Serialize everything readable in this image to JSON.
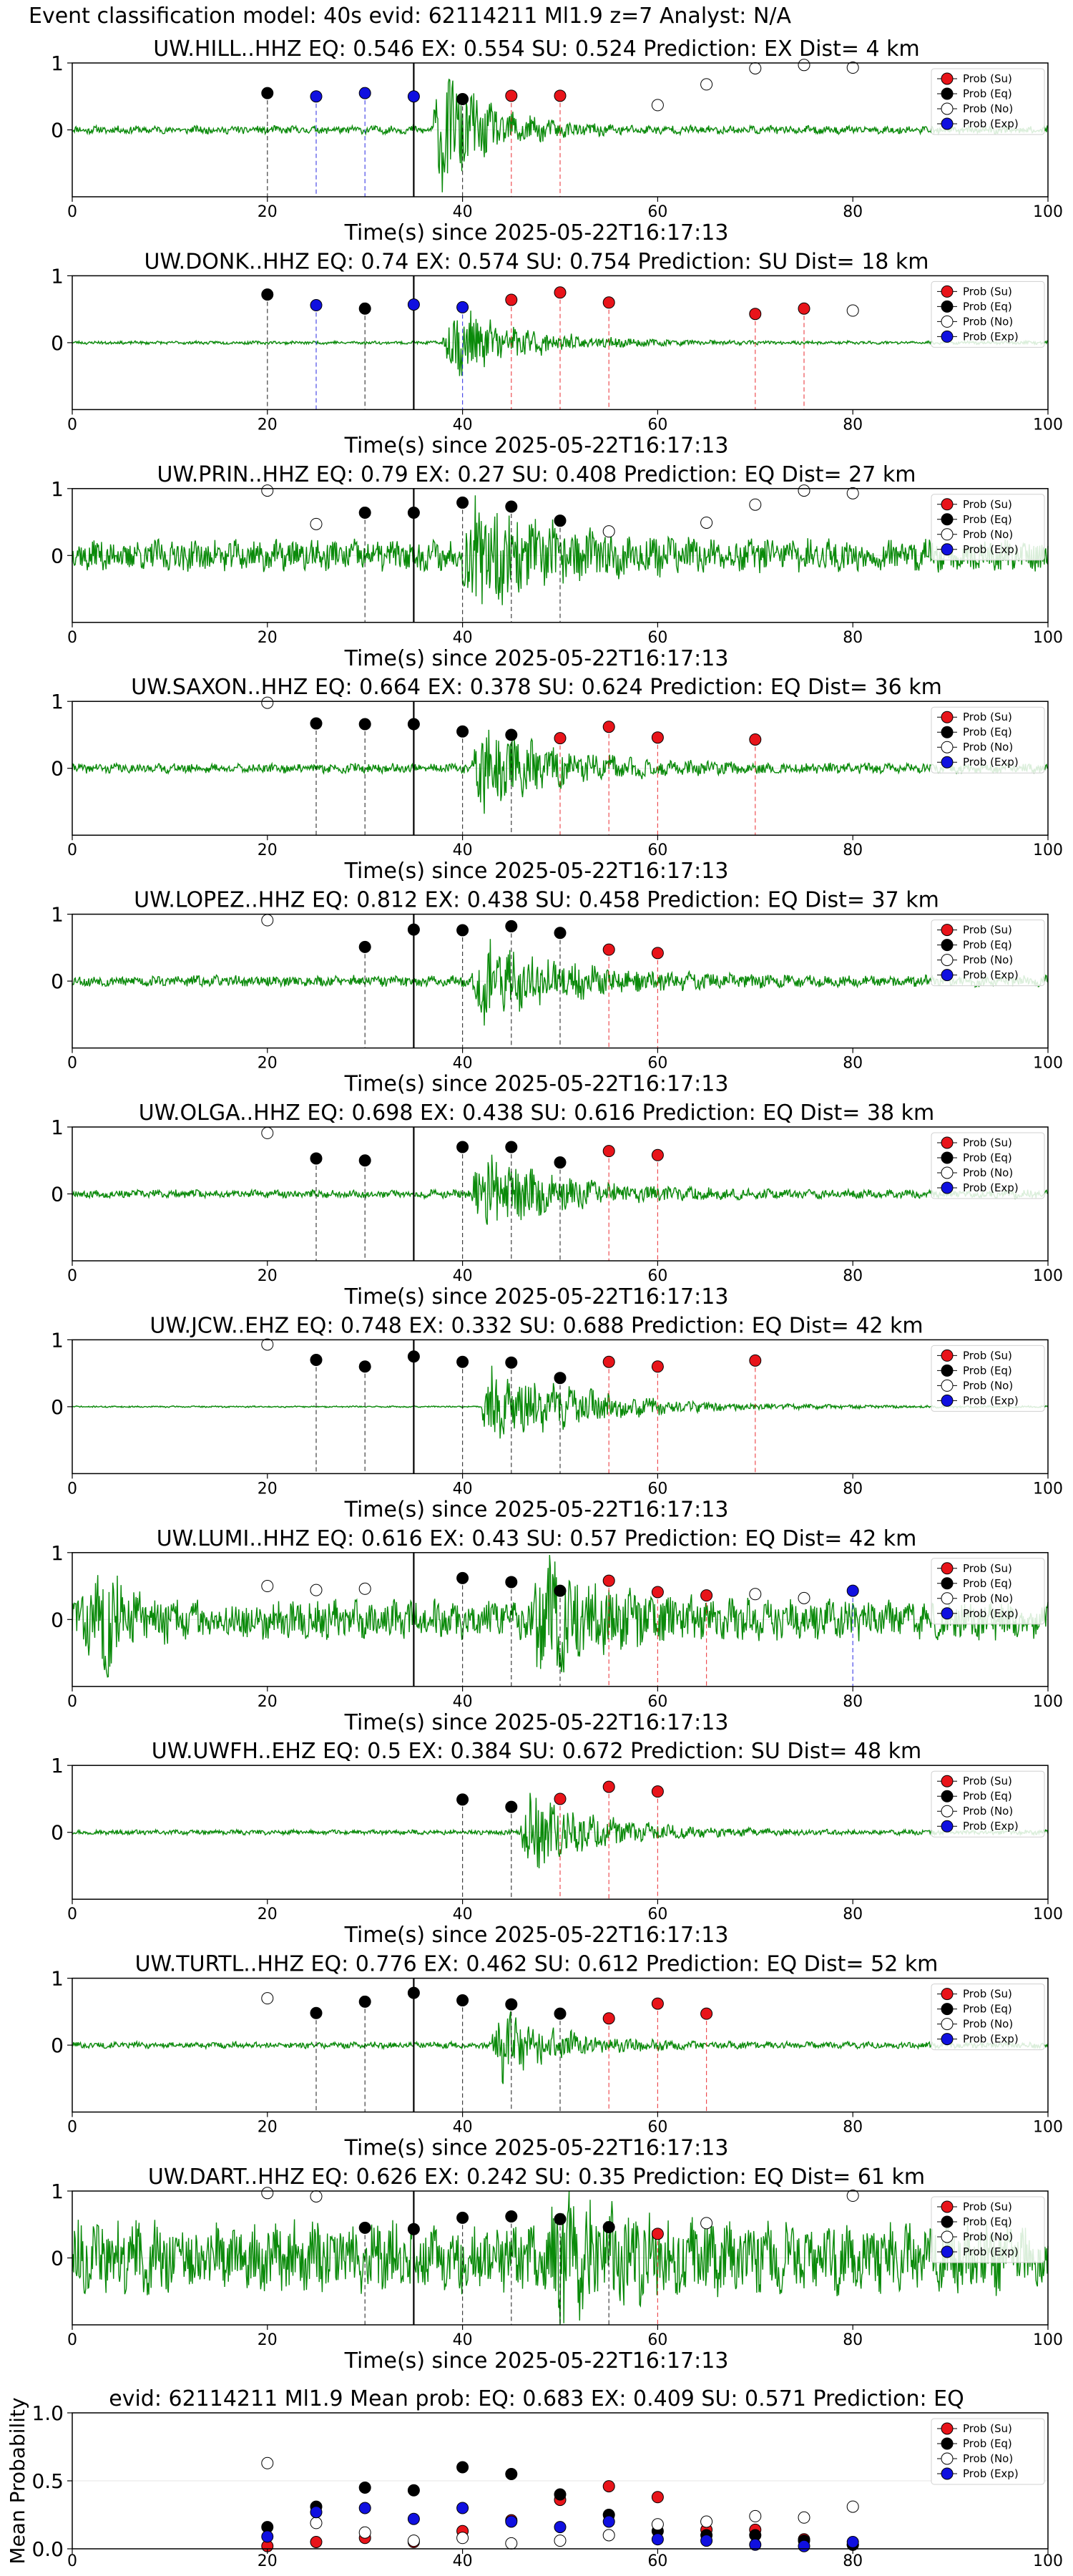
{
  "figure": {
    "title": "Event classification model: 40s evid: 62114211 Ml1.9 z=7 Analyst: N/A"
  },
  "colors": {
    "su": "#e8141a",
    "eq": "#000000",
    "no": "#ffffff",
    "exp": "#1010e0",
    "wave": "#0a8a0a",
    "axis": "#000000",
    "grid": "#e6e6e6"
  },
  "legend_labels": [
    "Prob (Su)",
    "Prob (Eq)",
    "Prob (No)",
    "Prob (Exp)"
  ],
  "chart_data": [
    {
      "type": "scatter",
      "station_title": "UW.HILL..HHZ   EQ: 0.546  EX: 0.554  SU: 0.524   Prediction: EX    Dist= 4 km",
      "xlabel": "Time(s) since 2025-05-22T16:17:13",
      "xlim": [
        0,
        100
      ],
      "ylim": [
        -1,
        1
      ],
      "xticks": [
        0,
        20,
        40,
        60,
        80,
        100
      ],
      "yticks": [
        1,
        0
      ],
      "pick_line": 35,
      "waveform": {
        "base_amp": 0.05,
        "onset": 37,
        "peak": 0.9,
        "decay": 5,
        "seed": 11
      },
      "points": [
        {
          "x": 20,
          "y": 0.55,
          "cls": "eq"
        },
        {
          "x": 25,
          "y": 0.5,
          "cls": "exp"
        },
        {
          "x": 30,
          "y": 0.55,
          "cls": "exp"
        },
        {
          "x": 35,
          "y": 0.5,
          "cls": "exp"
        },
        {
          "x": 40,
          "y": 0.46,
          "cls": "eq"
        },
        {
          "x": 45,
          "y": 0.51,
          "cls": "su"
        },
        {
          "x": 50,
          "y": 0.51,
          "cls": "su"
        },
        {
          "x": 60,
          "y": 0.37,
          "cls": "no"
        },
        {
          "x": 65,
          "y": 0.68,
          "cls": "no"
        },
        {
          "x": 70,
          "y": 0.92,
          "cls": "no"
        },
        {
          "x": 75,
          "y": 0.97,
          "cls": "no"
        },
        {
          "x": 80,
          "y": 0.93,
          "cls": "no"
        }
      ]
    },
    {
      "type": "scatter",
      "station_title": "UW.DONK..HHZ   EQ: 0.74  EX: 0.574  SU: 0.754   Prediction: SU    Dist= 18 km",
      "xlabel": "Time(s) since 2025-05-22T16:17:13",
      "xlim": [
        0,
        100
      ],
      "ylim": [
        -1,
        1
      ],
      "xticks": [
        0,
        20,
        40,
        60,
        80,
        100
      ],
      "yticks": [
        1,
        0
      ],
      "pick_line": 35,
      "waveform": {
        "base_amp": 0.02,
        "onset": 38,
        "peak": 0.55,
        "decay": 7,
        "seed": 23
      },
      "points": [
        {
          "x": 20,
          "y": 0.72,
          "cls": "eq"
        },
        {
          "x": 25,
          "y": 0.56,
          "cls": "exp"
        },
        {
          "x": 30,
          "y": 0.51,
          "cls": "eq"
        },
        {
          "x": 35,
          "y": 0.57,
          "cls": "exp"
        },
        {
          "x": 40,
          "y": 0.53,
          "cls": "exp"
        },
        {
          "x": 45,
          "y": 0.64,
          "cls": "su"
        },
        {
          "x": 50,
          "y": 0.75,
          "cls": "su"
        },
        {
          "x": 55,
          "y": 0.6,
          "cls": "su"
        },
        {
          "x": 70,
          "y": 0.43,
          "cls": "su"
        },
        {
          "x": 75,
          "y": 0.51,
          "cls": "su"
        },
        {
          "x": 80,
          "y": 0.48,
          "cls": "no"
        }
      ]
    },
    {
      "type": "scatter",
      "station_title": "UW.PRIN..HHZ   EQ: 0.79  EX: 0.27  SU: 0.408   Prediction: EQ    Dist= 27 km",
      "xlabel": "Time(s) since 2025-05-22T16:17:13",
      "xlim": [
        0,
        100
      ],
      "ylim": [
        -1,
        1
      ],
      "xticks": [
        0,
        20,
        40,
        60,
        80,
        100
      ],
      "yticks": [
        1,
        0
      ],
      "pick_line": 35,
      "waveform": {
        "base_amp": 0.2,
        "onset": 40,
        "peak": 0.7,
        "decay": 8,
        "seed": 37
      },
      "points": [
        {
          "x": 20,
          "y": 0.97,
          "cls": "no"
        },
        {
          "x": 25,
          "y": 0.47,
          "cls": "no"
        },
        {
          "x": 30,
          "y": 0.64,
          "cls": "eq"
        },
        {
          "x": 35,
          "y": 0.64,
          "cls": "eq"
        },
        {
          "x": 40,
          "y": 0.79,
          "cls": "eq"
        },
        {
          "x": 45,
          "y": 0.73,
          "cls": "eq"
        },
        {
          "x": 50,
          "y": 0.52,
          "cls": "eq"
        },
        {
          "x": 55,
          "y": 0.36,
          "cls": "no"
        },
        {
          "x": 65,
          "y": 0.49,
          "cls": "no"
        },
        {
          "x": 70,
          "y": 0.76,
          "cls": "no"
        },
        {
          "x": 75,
          "y": 0.97,
          "cls": "no"
        },
        {
          "x": 80,
          "y": 0.93,
          "cls": "no"
        }
      ]
    },
    {
      "type": "scatter",
      "station_title": "UW.SAXON..HHZ   EQ: 0.664  EX: 0.378  SU: 0.624   Prediction: EQ    Dist= 36 km",
      "xlabel": "Time(s) since 2025-05-22T16:17:13",
      "xlim": [
        0,
        100
      ],
      "ylim": [
        -1,
        1
      ],
      "xticks": [
        0,
        20,
        40,
        60,
        80,
        100
      ],
      "yticks": [
        1,
        0
      ],
      "pick_line": 35,
      "waveform": {
        "base_amp": 0.06,
        "onset": 41,
        "peak": 0.6,
        "decay": 8,
        "seed": 41
      },
      "points": [
        {
          "x": 20,
          "y": 0.98,
          "cls": "no"
        },
        {
          "x": 25,
          "y": 0.67,
          "cls": "eq"
        },
        {
          "x": 30,
          "y": 0.66,
          "cls": "eq"
        },
        {
          "x": 35,
          "y": 0.66,
          "cls": "eq"
        },
        {
          "x": 40,
          "y": 0.55,
          "cls": "eq"
        },
        {
          "x": 45,
          "y": 0.5,
          "cls": "eq"
        },
        {
          "x": 50,
          "y": 0.45,
          "cls": "su"
        },
        {
          "x": 55,
          "y": 0.62,
          "cls": "su"
        },
        {
          "x": 60,
          "y": 0.46,
          "cls": "su"
        },
        {
          "x": 70,
          "y": 0.43,
          "cls": "su"
        }
      ]
    },
    {
      "type": "scatter",
      "station_title": "UW.LOPEZ..HHZ   EQ: 0.812  EX: 0.438  SU: 0.458   Prediction: EQ    Dist= 37 km",
      "xlabel": "Time(s) since 2025-05-22T16:17:13",
      "xlim": [
        0,
        100
      ],
      "ylim": [
        -1,
        1
      ],
      "xticks": [
        0,
        20,
        40,
        60,
        80,
        100
      ],
      "yticks": [
        1,
        0
      ],
      "pick_line": 35,
      "waveform": {
        "base_amp": 0.07,
        "onset": 41,
        "peak": 0.55,
        "decay": 9,
        "seed": 53
      },
      "points": [
        {
          "x": 20,
          "y": 0.91,
          "cls": "no"
        },
        {
          "x": 30,
          "y": 0.51,
          "cls": "eq"
        },
        {
          "x": 35,
          "y": 0.77,
          "cls": "eq"
        },
        {
          "x": 40,
          "y": 0.76,
          "cls": "eq"
        },
        {
          "x": 45,
          "y": 0.82,
          "cls": "eq"
        },
        {
          "x": 50,
          "y": 0.72,
          "cls": "eq"
        },
        {
          "x": 55,
          "y": 0.47,
          "cls": "su"
        },
        {
          "x": 60,
          "y": 0.42,
          "cls": "su"
        }
      ]
    },
    {
      "type": "scatter",
      "station_title": "UW.OLGA..HHZ   EQ: 0.698  EX: 0.438  SU: 0.616   Prediction: EQ    Dist= 38 km",
      "xlabel": "Time(s) since 2025-05-22T16:17:13",
      "xlim": [
        0,
        100
      ],
      "ylim": [
        -1,
        1
      ],
      "xticks": [
        0,
        20,
        40,
        60,
        80,
        100
      ],
      "yticks": [
        1,
        0
      ],
      "pick_line": 35,
      "waveform": {
        "base_amp": 0.05,
        "onset": 41,
        "peak": 0.55,
        "decay": 8,
        "seed": 67
      },
      "points": [
        {
          "x": 20,
          "y": 0.91,
          "cls": "no"
        },
        {
          "x": 25,
          "y": 0.53,
          "cls": "eq"
        },
        {
          "x": 30,
          "y": 0.5,
          "cls": "eq"
        },
        {
          "x": 40,
          "y": 0.7,
          "cls": "eq"
        },
        {
          "x": 45,
          "y": 0.7,
          "cls": "eq"
        },
        {
          "x": 50,
          "y": 0.47,
          "cls": "eq"
        },
        {
          "x": 55,
          "y": 0.64,
          "cls": "su"
        },
        {
          "x": 60,
          "y": 0.58,
          "cls": "su"
        }
      ]
    },
    {
      "type": "scatter",
      "station_title": "UW.JCW..EHZ   EQ: 0.748  EX: 0.332  SU: 0.688   Prediction: EQ    Dist= 42 km",
      "xlabel": "Time(s) since 2025-05-22T16:17:13",
      "xlim": [
        0,
        100
      ],
      "ylim": [
        -1,
        1
      ],
      "xticks": [
        0,
        20,
        40,
        60,
        80,
        100
      ],
      "yticks": [
        1,
        0
      ],
      "pick_line": 35,
      "waveform": {
        "base_amp": 0.01,
        "onset": 42,
        "peak": 0.6,
        "decay": 10,
        "seed": 71
      },
      "points": [
        {
          "x": 20,
          "y": 0.93,
          "cls": "no"
        },
        {
          "x": 25,
          "y": 0.7,
          "cls": "eq"
        },
        {
          "x": 30,
          "y": 0.6,
          "cls": "eq"
        },
        {
          "x": 35,
          "y": 0.75,
          "cls": "eq"
        },
        {
          "x": 40,
          "y": 0.67,
          "cls": "eq"
        },
        {
          "x": 45,
          "y": 0.66,
          "cls": "eq"
        },
        {
          "x": 50,
          "y": 0.43,
          "cls": "eq"
        },
        {
          "x": 55,
          "y": 0.67,
          "cls": "su"
        },
        {
          "x": 60,
          "y": 0.6,
          "cls": "su"
        },
        {
          "x": 70,
          "y": 0.69,
          "cls": "su"
        }
      ]
    },
    {
      "type": "scatter",
      "station_title": "UW.LUMI..HHZ   EQ: 0.616  EX: 0.43  SU: 0.57   Prediction: EQ    Dist= 42 km",
      "xlabel": "Time(s) since 2025-05-22T16:17:13",
      "xlim": [
        0,
        100
      ],
      "ylim": [
        -1,
        1
      ],
      "xticks": [
        0,
        20,
        40,
        60,
        80,
        100
      ],
      "yticks": [
        1,
        0
      ],
      "pick_line": 35,
      "waveform": {
        "base_amp": 0.25,
        "onset": 47,
        "peak": 0.75,
        "decay": 6,
        "seed": 83,
        "early_burst": 4
      },
      "points": [
        {
          "x": 20,
          "y": 0.5,
          "cls": "no"
        },
        {
          "x": 25,
          "y": 0.44,
          "cls": "no"
        },
        {
          "x": 30,
          "y": 0.46,
          "cls": "no"
        },
        {
          "x": 40,
          "y": 0.62,
          "cls": "eq"
        },
        {
          "x": 45,
          "y": 0.56,
          "cls": "eq"
        },
        {
          "x": 50,
          "y": 0.43,
          "cls": "eq"
        },
        {
          "x": 55,
          "y": 0.58,
          "cls": "su"
        },
        {
          "x": 60,
          "y": 0.41,
          "cls": "su"
        },
        {
          "x": 65,
          "y": 0.36,
          "cls": "su"
        },
        {
          "x": 70,
          "y": 0.38,
          "cls": "no"
        },
        {
          "x": 75,
          "y": 0.32,
          "cls": "no"
        },
        {
          "x": 80,
          "y": 0.43,
          "cls": "exp"
        }
      ]
    },
    {
      "type": "scatter",
      "station_title": "UW.UWFH..EHZ   EQ: 0.5  EX: 0.384  SU: 0.672   Prediction: SU    Dist= 48 km",
      "xlabel": "Time(s) since 2025-05-22T16:17:13",
      "xlim": [
        0,
        100
      ],
      "ylim": [
        -1,
        1
      ],
      "xticks": [
        0,
        20,
        40,
        60,
        80,
        100
      ],
      "yticks": [
        1,
        0
      ],
      "pick_line": null,
      "waveform": {
        "base_amp": 0.03,
        "onset": 46,
        "peak": 0.6,
        "decay": 7,
        "seed": 97
      },
      "points": [
        {
          "x": 40,
          "y": 0.49,
          "cls": "eq"
        },
        {
          "x": 45,
          "y": 0.38,
          "cls": "eq"
        },
        {
          "x": 50,
          "y": 0.5,
          "cls": "su"
        },
        {
          "x": 55,
          "y": 0.68,
          "cls": "su"
        },
        {
          "x": 60,
          "y": 0.61,
          "cls": "su"
        }
      ]
    },
    {
      "type": "scatter",
      "station_title": "UW.TURTL..HHZ   EQ: 0.776  EX: 0.462  SU: 0.612   Prediction: EQ    Dist= 52 km",
      "xlabel": "Time(s) since 2025-05-22T16:17:13",
      "xlim": [
        0,
        100
      ],
      "ylim": [
        -1,
        1
      ],
      "xticks": [
        0,
        20,
        40,
        60,
        80,
        100
      ],
      "yticks": [
        1,
        0
      ],
      "pick_line": 35,
      "waveform": {
        "base_amp": 0.04,
        "onset": 43,
        "peak": 0.5,
        "decay": 6,
        "seed": 101
      },
      "points": [
        {
          "x": 20,
          "y": 0.7,
          "cls": "no"
        },
        {
          "x": 25,
          "y": 0.48,
          "cls": "eq"
        },
        {
          "x": 30,
          "y": 0.65,
          "cls": "eq"
        },
        {
          "x": 35,
          "y": 0.78,
          "cls": "eq"
        },
        {
          "x": 40,
          "y": 0.67,
          "cls": "eq"
        },
        {
          "x": 45,
          "y": 0.61,
          "cls": "eq"
        },
        {
          "x": 50,
          "y": 0.47,
          "cls": "eq"
        },
        {
          "x": 55,
          "y": 0.4,
          "cls": "su"
        },
        {
          "x": 60,
          "y": 0.62,
          "cls": "su"
        },
        {
          "x": 65,
          "y": 0.47,
          "cls": "su"
        }
      ]
    },
    {
      "type": "scatter",
      "station_title": "UW.DART..HHZ   EQ: 0.626  EX: 0.242  SU: 0.35   Prediction: EQ    Dist= 61 km",
      "xlabel": "Time(s) since 2025-05-22T16:17:13",
      "xlim": [
        0,
        100
      ],
      "ylim": [
        -1,
        1
      ],
      "xticks": [
        0,
        20,
        40,
        60,
        80,
        100
      ],
      "yticks": [
        1,
        0
      ],
      "pick_line": 35,
      "waveform": {
        "base_amp": 0.45,
        "onset": 49,
        "peak": 0.6,
        "decay": 6,
        "seed": 113
      },
      "points": [
        {
          "x": 20,
          "y": 0.97,
          "cls": "no"
        },
        {
          "x": 25,
          "y": 0.92,
          "cls": "no"
        },
        {
          "x": 30,
          "y": 0.45,
          "cls": "eq"
        },
        {
          "x": 35,
          "y": 0.43,
          "cls": "eq"
        },
        {
          "x": 40,
          "y": 0.6,
          "cls": "eq"
        },
        {
          "x": 45,
          "y": 0.62,
          "cls": "eq"
        },
        {
          "x": 50,
          "y": 0.58,
          "cls": "eq"
        },
        {
          "x": 55,
          "y": 0.46,
          "cls": "eq"
        },
        {
          "x": 60,
          "y": 0.36,
          "cls": "su"
        },
        {
          "x": 65,
          "y": 0.52,
          "cls": "no"
        },
        {
          "x": 80,
          "y": 0.93,
          "cls": "no"
        }
      ]
    },
    {
      "type": "scatter",
      "station_title": "evid: 62114211   Ml1.9   Mean prob:   EQ: 0.683  EX: 0.409  SU: 0.571   Prediction: EQ",
      "xlabel": "",
      "ylabel": "Mean Probability",
      "xlim": [
        0,
        100
      ],
      "ylim": [
        0,
        1
      ],
      "xticks": [
        0,
        20,
        40,
        60,
        80,
        100
      ],
      "yticks": [
        1.0,
        0.5,
        0.0
      ],
      "ytick_labels": [
        "1.0",
        "0.5",
        "0.0"
      ],
      "series": [
        {
          "name": "Prob (Su)",
          "cls": "su",
          "x": [
            20,
            25,
            30,
            35,
            40,
            45,
            50,
            55,
            60,
            65,
            70,
            75,
            80
          ],
          "y": [
            0.02,
            0.05,
            0.08,
            0.05,
            0.13,
            0.21,
            0.36,
            0.46,
            0.38,
            0.14,
            0.14,
            0.07,
            0.03
          ]
        },
        {
          "name": "Prob (Eq)",
          "cls": "eq",
          "x": [
            20,
            25,
            30,
            35,
            40,
            45,
            50,
            55,
            60,
            65,
            70,
            75,
            80
          ],
          "y": [
            0.16,
            0.31,
            0.45,
            0.43,
            0.6,
            0.55,
            0.4,
            0.25,
            0.13,
            0.1,
            0.1,
            0.06,
            0.03
          ]
        },
        {
          "name": "Prob (No)",
          "cls": "no",
          "x": [
            20,
            25,
            30,
            35,
            40,
            45,
            50,
            55,
            60,
            65,
            70,
            75,
            80
          ],
          "y": [
            0.63,
            0.19,
            0.12,
            0.06,
            0.08,
            0.04,
            0.06,
            0.1,
            0.18,
            0.2,
            0.24,
            0.23,
            0.31
          ]
        },
        {
          "name": "Prob (Exp)",
          "cls": "exp",
          "x": [
            20,
            25,
            30,
            35,
            40,
            45,
            50,
            55,
            60,
            65,
            70,
            75,
            80
          ],
          "y": [
            0.09,
            0.27,
            0.3,
            0.22,
            0.3,
            0.2,
            0.16,
            0.2,
            0.07,
            0.06,
            0.03,
            0.02,
            0.05
          ]
        }
      ]
    }
  ]
}
